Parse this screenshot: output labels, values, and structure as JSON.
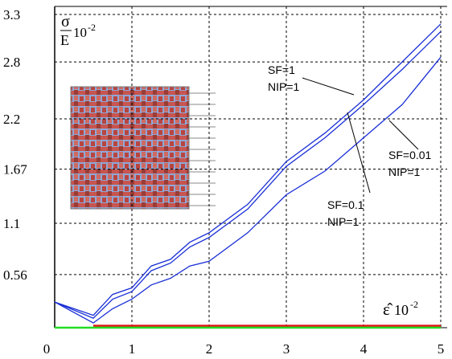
{
  "chart_data": {
    "type": "line",
    "y_label": {
      "numerator": "σ",
      "denominator": "E",
      "base": "10",
      "exponent": "-2"
    },
    "x_label": {
      "symbol": "ε̂",
      "base": "10",
      "exponent": "-2"
    },
    "x": [
      0,
      0.5,
      0.75,
      1,
      1.25,
      1.5,
      1.75,
      2,
      2.5,
      3,
      3.5,
      4,
      4.5,
      5
    ],
    "series": [
      {
        "color": "#1a2fd6",
        "values": [
          0.27,
          0.13,
          0.35,
          0.42,
          0.65,
          0.72,
          0.9,
          1.0,
          1.3,
          1.75,
          2.05,
          2.4,
          2.8,
          3.2
        ]
      },
      {
        "color": "#1a2fd6",
        "values": [
          0.27,
          0.1,
          0.3,
          0.38,
          0.6,
          0.68,
          0.85,
          0.95,
          1.25,
          1.7,
          2.0,
          2.35,
          2.72,
          3.12
        ]
      },
      {
        "color": "#1a2fd6",
        "values": [
          0.27,
          0.05,
          0.2,
          0.3,
          0.45,
          0.52,
          0.65,
          0.7,
          1.0,
          1.4,
          1.65,
          2.0,
          2.35,
          2.85
        ]
      },
      {
        "color": "#e01010",
        "values": [
          null,
          0.02,
          0.02,
          0.02,
          0.02,
          0.02,
          0.02,
          0.02,
          0.02,
          0.02,
          0.02,
          0.02,
          0.02,
          0.02
        ]
      },
      {
        "color": "#22dd22",
        "values": [
          0,
          0,
          0,
          0,
          0,
          0,
          0,
          0,
          0,
          0,
          0,
          0,
          0,
          0
        ]
      }
    ],
    "xlim": [
      0,
      5
    ],
    "ylim": [
      0,
      3.3
    ],
    "xticks": [
      0,
      1,
      2,
      3,
      4,
      5
    ],
    "yticks": [
      0.56,
      1.1,
      1.67,
      2.2,
      2.8,
      3.3
    ],
    "grid": true,
    "annotations": [
      {
        "lines": [
          "SF=1",
          "NIP=1"
        ]
      },
      {
        "lines": [
          "SF=0.01",
          "NIP=1"
        ]
      },
      {
        "lines": [
          "SF=0.1",
          "NIP=1"
        ]
      }
    ]
  }
}
